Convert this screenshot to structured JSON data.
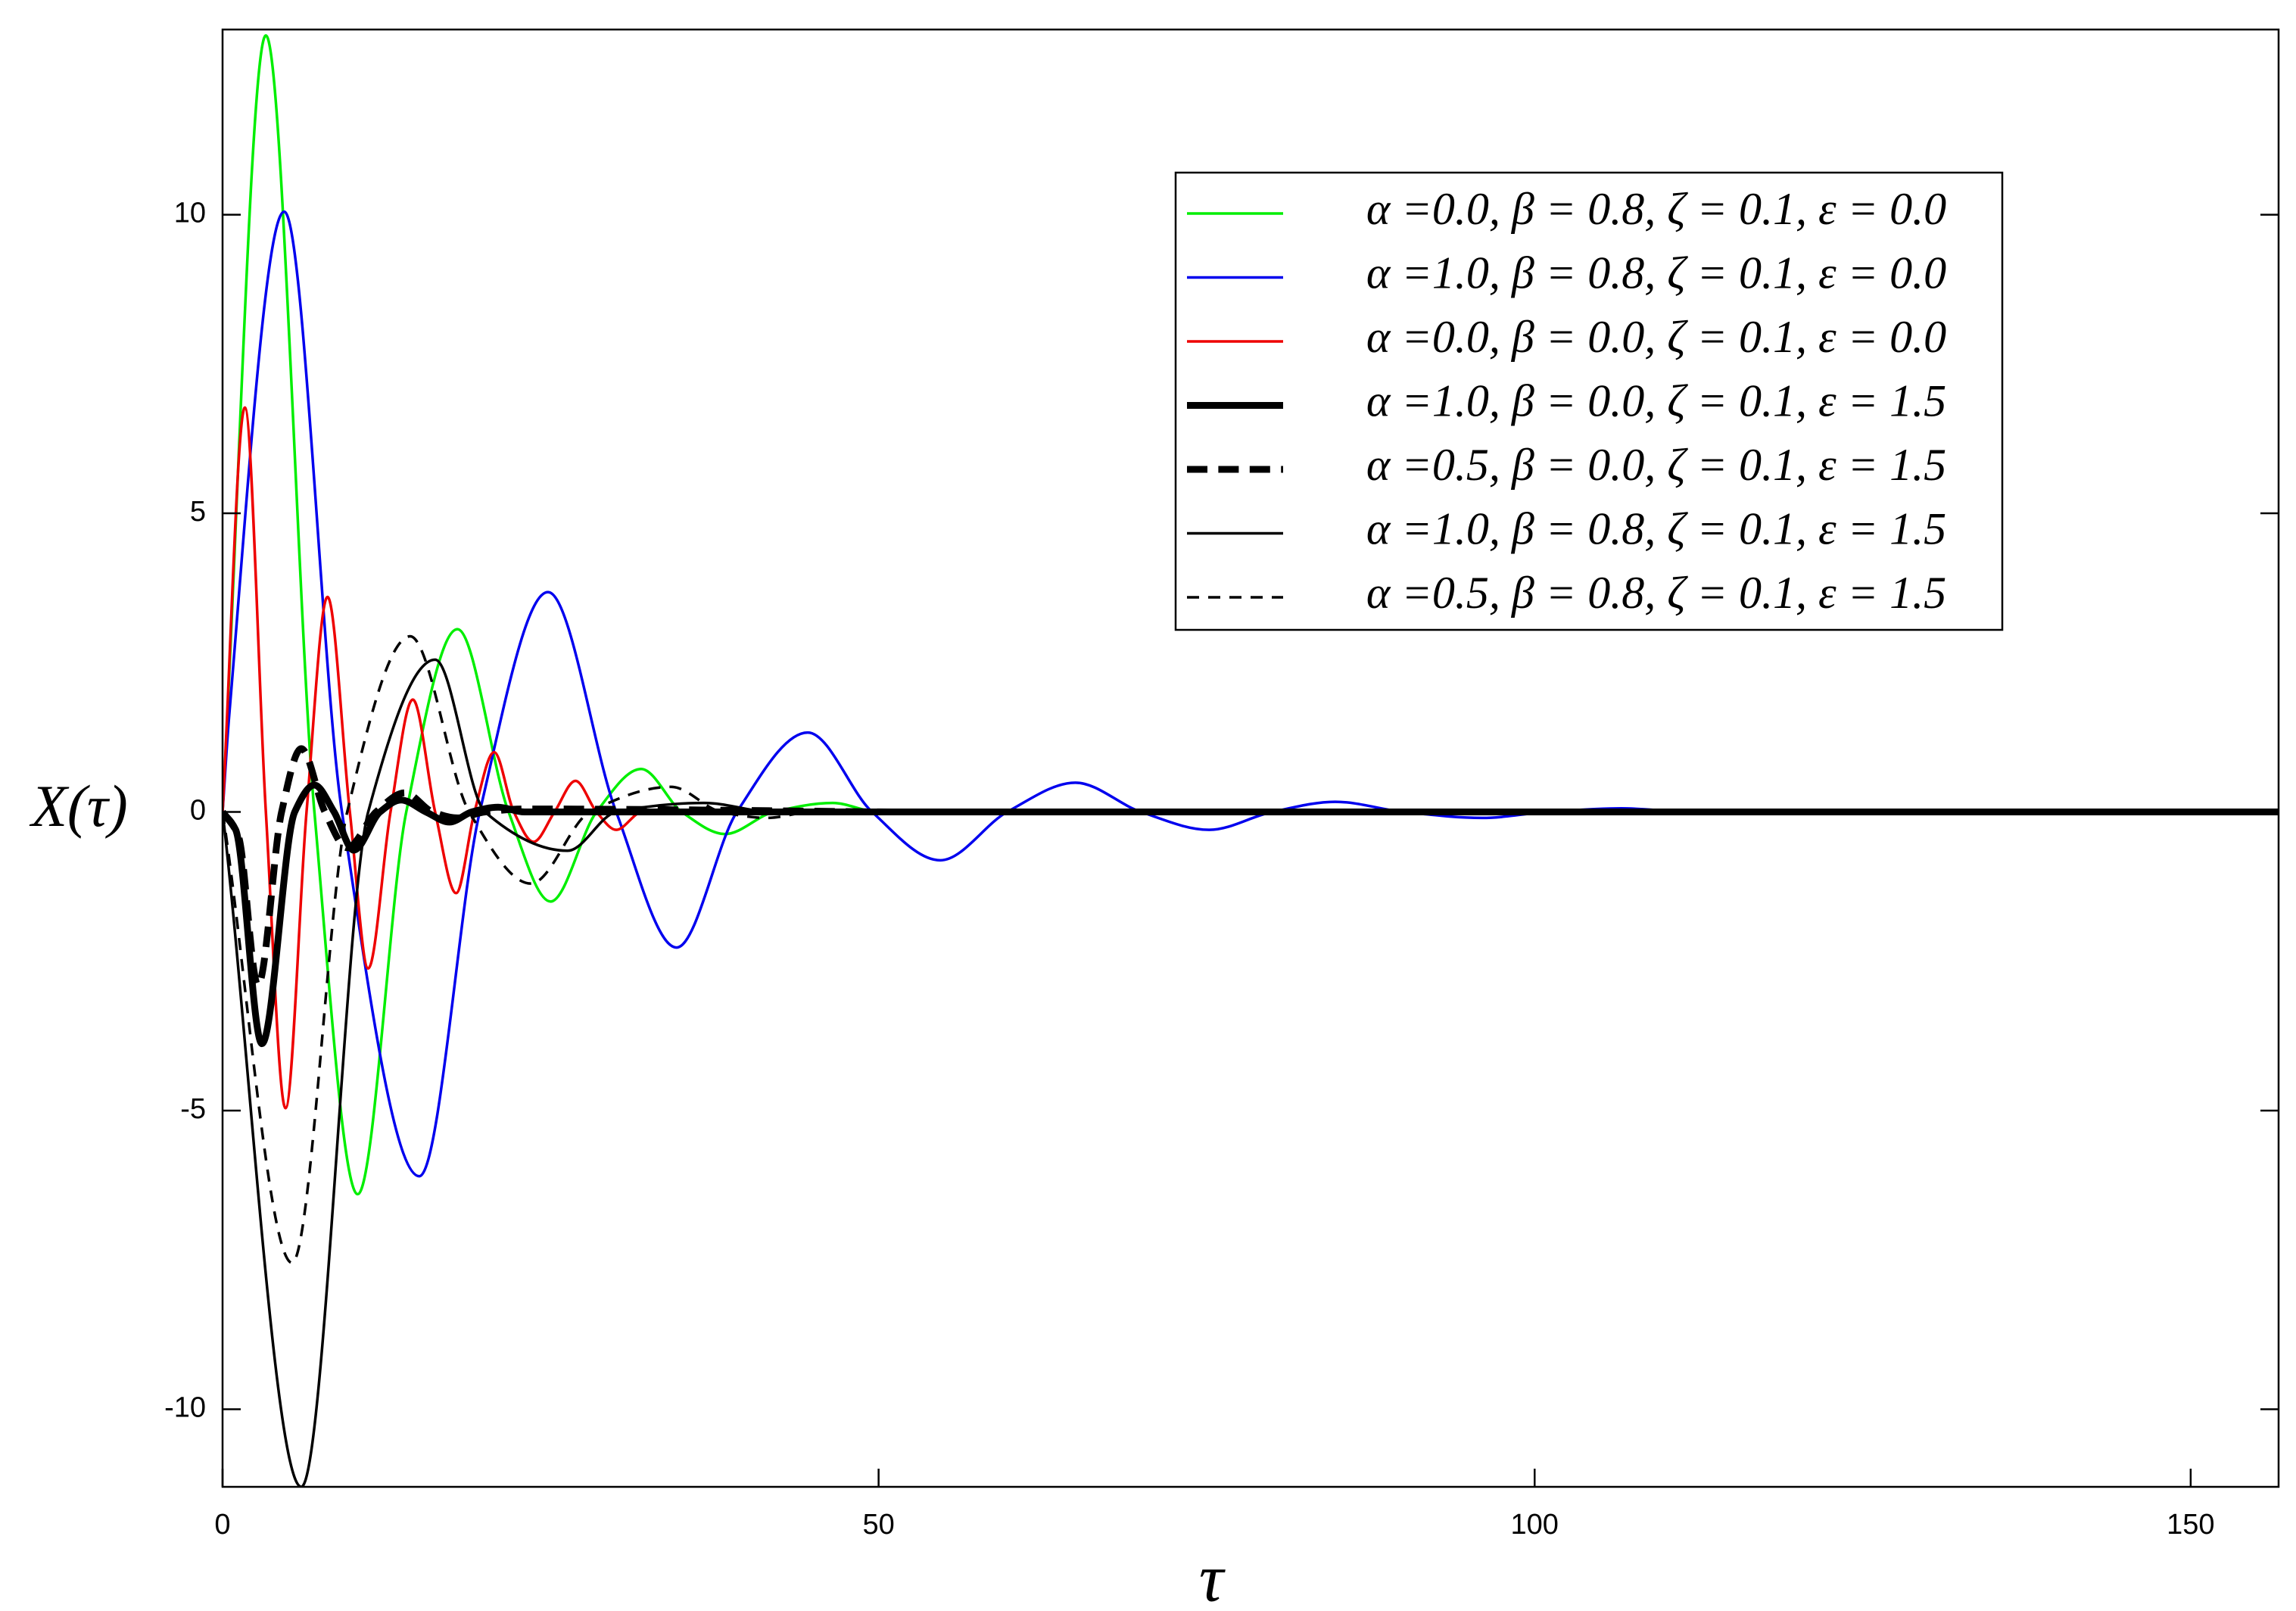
{
  "chart_data": {
    "type": "line",
    "x_label": "τ",
    "y_label": "X(τ)",
    "xlim": [
      0,
      156.7
    ],
    "ylim": [
      -11.3,
      13.1
    ],
    "xticks": [
      0,
      50,
      100,
      150
    ],
    "yticks": [
      -10,
      -5,
      0,
      5,
      10
    ],
    "grid": false,
    "legend": "upper right",
    "series": [
      {
        "name": "α =0.0, β = 0.8, ζ = 0.1, ε = 0.0",
        "color": "#00ee00",
        "line_width": 3.5,
        "dash": "solid",
        "x": [
          0,
          3.3,
          7,
          10.3,
          14,
          17.9,
          21.8,
          25,
          28.5,
          31.9,
          35,
          38.3,
          42,
          46.5,
          50,
          56,
          156.7
        ],
        "values": [
          0,
          13,
          0,
          -6.4,
          0,
          3.06,
          0,
          -1.5,
          0,
          0.72,
          0,
          -0.37,
          0,
          0.15,
          0,
          0,
          0
        ]
      },
      {
        "name": "α =1.0, β = 0.8, ζ = 0.1, ε = 0.0",
        "color": "#0000ee",
        "line_width": 3.5,
        "dash": "solid",
        "x": [
          0,
          0.5,
          4.7,
          9.1,
          15,
          19.6,
          24.8,
          30,
          34.6,
          39.2,
          44.6,
          49.5,
          54.7,
          59.8,
          65,
          70,
          75.2,
          80,
          84.8,
          90,
          96,
          101,
          106.6,
          112,
          156.7
        ],
        "values": [
          0,
          1.6,
          10.05,
          0,
          -6.1,
          0,
          3.68,
          0,
          -2.27,
          0,
          1.33,
          0,
          -0.81,
          0,
          0.49,
          0,
          -0.3,
          0,
          0.17,
          0,
          -0.1,
          0,
          0.06,
          0,
          0
        ]
      },
      {
        "name": "α =0.0, β = 0.0, ζ = 0.1, ε = 0.0",
        "color": "#ee0000",
        "line_width": 3.5,
        "dash": "solid",
        "x": [
          0,
          1.7,
          3.3,
          4.8,
          6.4,
          8,
          9.7,
          11.1,
          12.8,
          14.5,
          16.2,
          17.8,
          19.2,
          20.7,
          22.2,
          23.7,
          25.3,
          26.9,
          28.5,
          30,
          32,
          35,
          156.7
        ],
        "values": [
          0,
          6.77,
          0,
          -4.96,
          0,
          3.6,
          0,
          -2.62,
          0,
          1.88,
          0,
          -1.36,
          0,
          1.0,
          0,
          -0.5,
          0,
          0.52,
          0,
          -0.3,
          0,
          0,
          0
        ]
      },
      {
        "name": "α =1.0, β = 0.0, ζ = 0.1, ε = 1.5",
        "color": "#000000",
        "line_width": 9,
        "dash": "solid",
        "x": [
          0,
          1,
          3,
          5.5,
          7,
          8.5,
          10,
          12,
          13.6,
          15.5,
          17.3,
          19,
          21,
          23,
          156.7
        ],
        "values": [
          0,
          -0.3,
          -3.88,
          0,
          0.45,
          0,
          -0.64,
          0,
          0.2,
          0,
          -0.17,
          0,
          0.08,
          0,
          0
        ]
      },
      {
        "name": "α =0.5, β = 0.0, ζ = 0.1, ε = 1.5",
        "color": "#000000",
        "line_width": 9,
        "dash": "dashed",
        "x": [
          0,
          1.2,
          2.7,
          4.5,
          6,
          7.8,
          9.5,
          11.7,
          13.9,
          16,
          17.9,
          20,
          23,
          51
        ],
        "values": [
          0,
          -0.4,
          -2.9,
          0,
          1.06,
          0,
          -0.6,
          0,
          0.32,
          0,
          -0.1,
          0,
          0.05,
          0
        ]
      },
      {
        "name": "α =1.0, β = 0.8, ζ = 0.1, ε = 1.5",
        "color": "#000000",
        "line_width": 3.5,
        "dash": "solid",
        "x": [
          0,
          6,
          11.1,
          16.2,
          20,
          26.3,
          30,
          36.7,
          42,
          156.7
        ],
        "values": [
          0,
          -11.3,
          0,
          2.55,
          0,
          -0.65,
          0,
          0.15,
          0,
          0
        ]
      },
      {
        "name": "α =0.5, β = 0.8, ζ = 0.1, ε = 1.5",
        "color": "#000000",
        "line_width": 3.5,
        "dash": "dotted",
        "x": [
          0,
          5.3,
          9.5,
          14.3,
          18.8,
          23.5,
          28,
          34.2,
          38,
          41.5,
          45,
          55
        ],
        "values": [
          0,
          -7.55,
          0,
          2.94,
          0,
          -1.2,
          0,
          0.42,
          0,
          -0.1,
          0,
          0
        ]
      }
    ]
  }
}
